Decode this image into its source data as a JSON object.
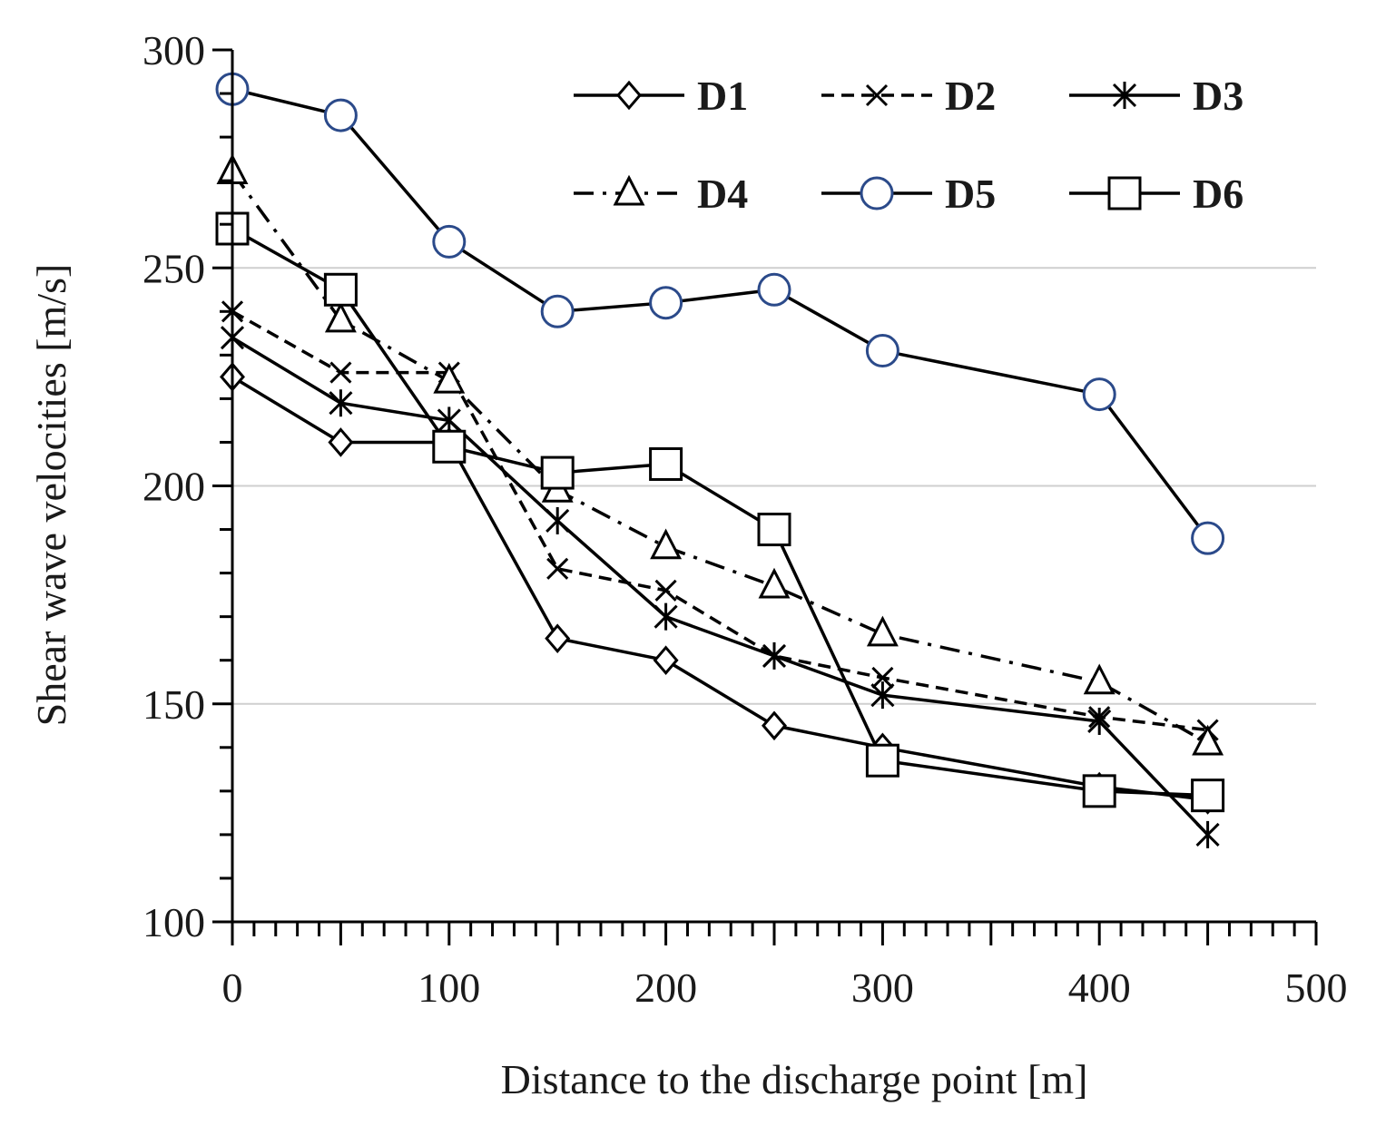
{
  "chart_data": {
    "type": "line",
    "xlabel": "Distance to the discharge point [m]",
    "ylabel": "Shear wave velocities [m/s]",
    "xlim": [
      0,
      500
    ],
    "ylim": [
      100,
      300
    ],
    "x_ticks": [
      0,
      100,
      200,
      300,
      400,
      500
    ],
    "x_tick_labels": [
      "0",
      "100",
      "200",
      "300",
      "400",
      "500"
    ],
    "y_ticks": [
      100,
      150,
      200,
      250,
      300
    ],
    "y_tick_labels": [
      "100",
      "150",
      "200",
      "250",
      "300"
    ],
    "grid": "horizontal",
    "legend_position": "top-right",
    "x": [
      0,
      50,
      100,
      150,
      200,
      250,
      300,
      400,
      450
    ],
    "series": [
      {
        "name": "D1",
        "marker": "diamond",
        "dash": "solid",
        "values": [
          225,
          210,
          210,
          165,
          160,
          145,
          140,
          131,
          128
        ]
      },
      {
        "name": "D2",
        "marker": "x",
        "dash": "dashed",
        "values": [
          240,
          226,
          226,
          181,
          176,
          161,
          156,
          147,
          144
        ]
      },
      {
        "name": "D3",
        "marker": "asterisk",
        "dash": "solid",
        "values": [
          234,
          219,
          215,
          192,
          170,
          161,
          152,
          146,
          120
        ]
      },
      {
        "name": "D4",
        "marker": "triangle",
        "dash": "dashdot",
        "values": [
          272,
          238,
          224,
          199,
          186,
          177,
          166,
          155,
          141
        ]
      },
      {
        "name": "D5",
        "marker": "circle",
        "dash": "solid",
        "color": "#2b4a8a",
        "values": [
          291,
          285,
          256,
          240,
          242,
          245,
          231,
          221,
          188
        ]
      },
      {
        "name": "D6",
        "marker": "square",
        "dash": "solid",
        "values": [
          259,
          245,
          209,
          203,
          205,
          190,
          137,
          130,
          129
        ]
      }
    ]
  }
}
